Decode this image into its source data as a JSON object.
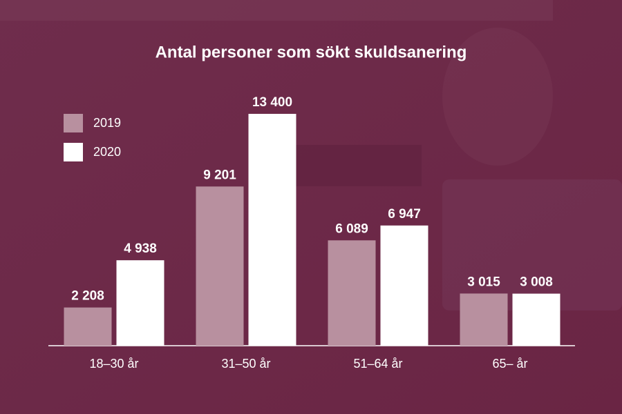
{
  "chart_data": {
    "type": "bar",
    "title": "Antal personer som sökt skuldsanering",
    "categories": [
      "18–30 år",
      "31–50 år",
      "51–64 år",
      "65– år"
    ],
    "series": [
      {
        "name": "2019",
        "color": "#b8909f",
        "values": [
          2208,
          9201,
          6089,
          3015
        ],
        "value_labels": [
          "2 208",
          "9 201",
          "6 089",
          "3 015"
        ]
      },
      {
        "name": "2020",
        "color": "#ffffff",
        "values": [
          4938,
          13400,
          6947,
          3008
        ],
        "value_labels": [
          "4 938",
          "13 400",
          "6 947",
          "3 008"
        ]
      }
    ],
    "legend": "upper left"
  }
}
